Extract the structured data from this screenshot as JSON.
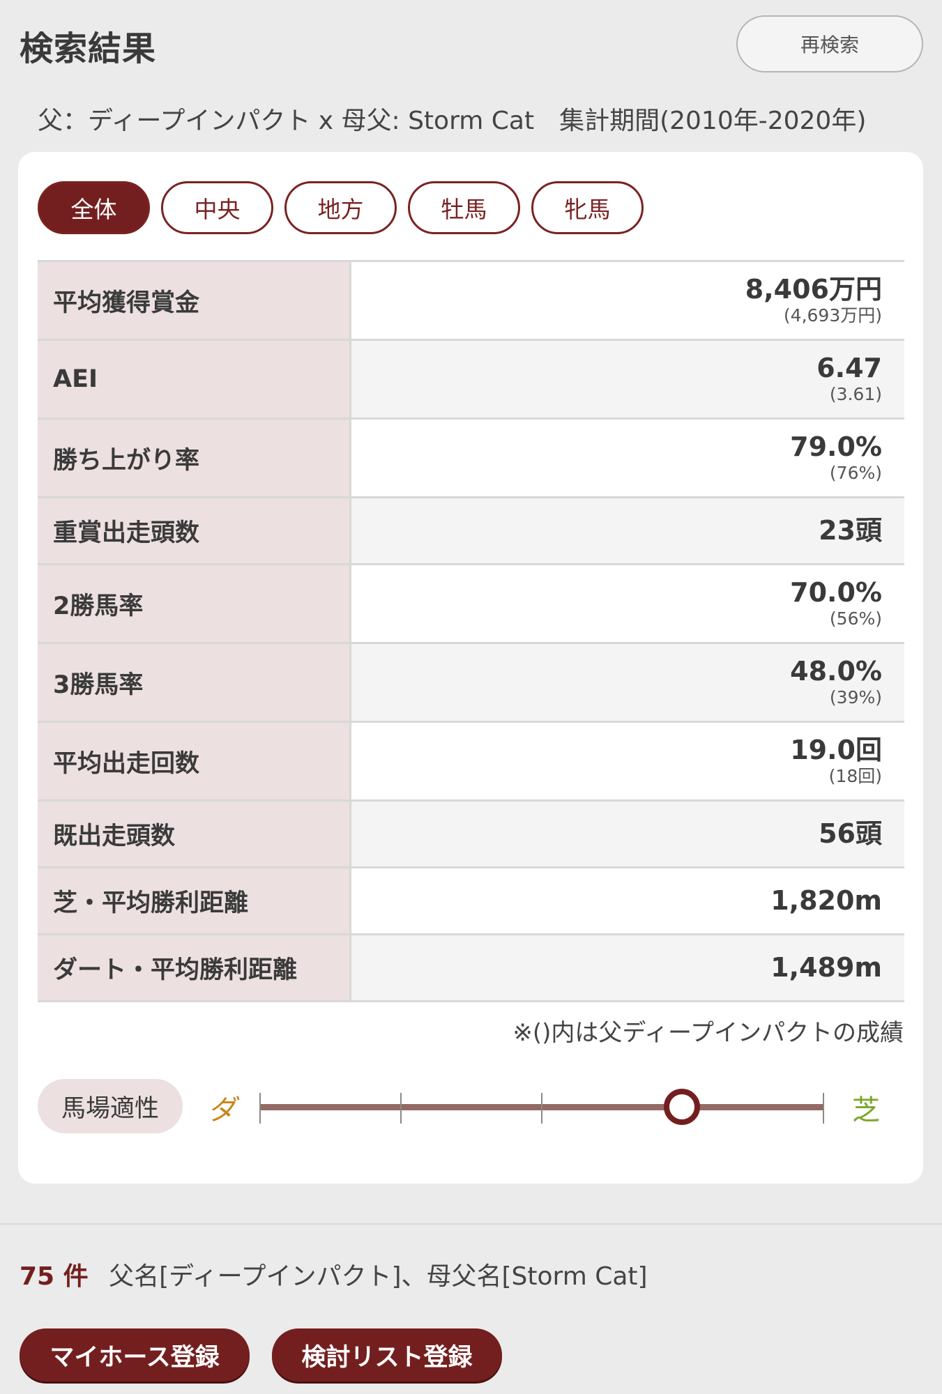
{
  "header": {
    "title": "検索結果",
    "research_label": "再検索"
  },
  "criteria": "父：ディープインパクト x 母父: Storm Cat　集計期間(2010年-2020年)",
  "tabs": [
    {
      "label": "全体",
      "active": true
    },
    {
      "label": "中央",
      "active": false
    },
    {
      "label": "地方",
      "active": false
    },
    {
      "label": "牡馬",
      "active": false
    },
    {
      "label": "牝馬",
      "active": false
    }
  ],
  "stats": [
    {
      "label": "平均獲得賞金",
      "value": "8,406万円",
      "sub": "(4,693万円)"
    },
    {
      "label": "AEI",
      "value": "6.47",
      "sub": "(3.61)"
    },
    {
      "label": "勝ち上がり率",
      "value": "79.0%",
      "sub": "(76%)"
    },
    {
      "label": "重賞出走頭数",
      "value": "23頭",
      "sub": ""
    },
    {
      "label": "2勝馬率",
      "value": "70.0%",
      "sub": "(56%)"
    },
    {
      "label": "3勝馬率",
      "value": "48.0%",
      "sub": "(39%)"
    },
    {
      "label": "平均出走回数",
      "value": "19.0回",
      "sub": "(18回)"
    },
    {
      "label": "既出走頭数",
      "value": "56頭",
      "sub": ""
    },
    {
      "label": "芝・平均勝利距離",
      "value": "1,820m",
      "sub": ""
    },
    {
      "label": "ダート・平均勝利距離",
      "value": "1,489m",
      "sub": ""
    }
  ],
  "note": "※()内は父ディープインパクトの成績",
  "track_fit": {
    "label": "馬場適性",
    "left_label": "ダ",
    "right_label": "芝",
    "level": 0.75,
    "colors": {
      "left": "#c8851a",
      "right": "#7aa72a",
      "accent": "#741f1f"
    }
  },
  "results": {
    "count": "75 件",
    "description": "父名[ディープインパクト]、母父名[Storm Cat]"
  },
  "buttons": {
    "my_horse": "マイホース登録",
    "review_list": "検討リスト登録"
  }
}
